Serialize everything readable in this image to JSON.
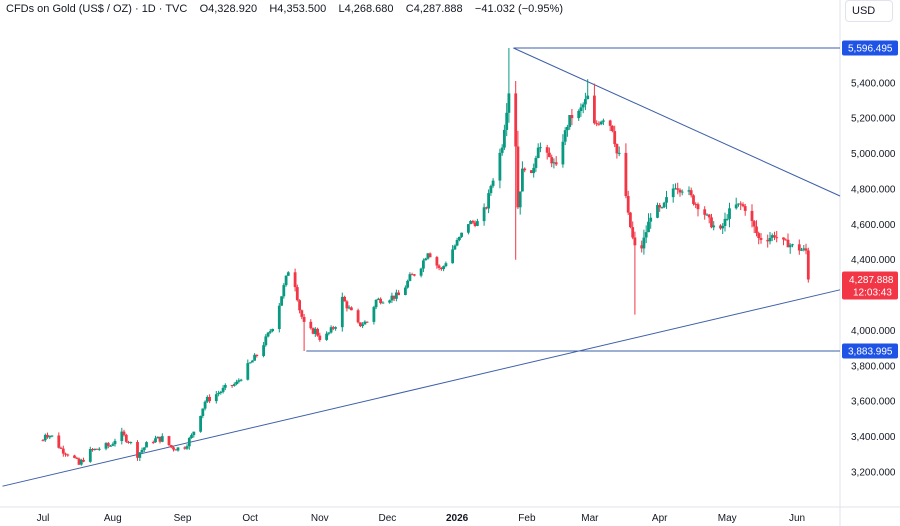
{
  "header": {
    "symbol": "CFDs on Gold (US$ / OZ) · 1D · TVC",
    "open": "O4,328.920",
    "high": "H4,353.500",
    "low": "L4,268.680",
    "close": "C4,287.888",
    "change": "−41.032 (−0.95%)"
  },
  "currency": "USD",
  "price_tag": {
    "price": "4,287.888",
    "countdown": "12:03:43"
  },
  "levels": [
    {
      "label": "5,596.495",
      "value": 5596.495
    },
    {
      "label": "3,883.995",
      "value": 3883.995
    }
  ],
  "colors": {
    "up": "#089981",
    "down": "#f23645",
    "line": "#2962ff",
    "level_tag": "#1e53e5",
    "price_tag": "#f23645"
  },
  "chart_data": {
    "type": "candlestick",
    "y_ticks": [
      "5,400.000",
      "5,200.000",
      "5,000.000",
      "4,800.000",
      "4,600.000",
      "4,400.000",
      "4,000.000",
      "3,800.000",
      "3,600.000",
      "3,400.000",
      "3,200.000"
    ],
    "y_tick_values": [
      5400,
      5200,
      5000,
      4800,
      4600,
      4400,
      4000,
      3800,
      3600,
      3400,
      3200
    ],
    "ylim": [
      3100,
      5730
    ],
    "x_ticks": [
      "Jul",
      "Aug",
      "Sep",
      "Oct",
      "Nov",
      "Dec",
      "2026",
      "Feb",
      "Mar",
      "Apr",
      "May",
      "Jun"
    ],
    "x_tick_days": [
      0,
      31,
      62,
      92,
      123,
      153,
      184,
      215,
      243,
      274,
      304,
      335
    ],
    "x_bold": [
      "2026"
    ],
    "xlim": [
      -12,
      370
    ],
    "trendlines": [
      {
        "name": "support",
        "from": {
          "day": -18,
          "value": 3120
        },
        "to": {
          "day": 361,
          "value": 4230
        }
      },
      {
        "name": "resistance",
        "from": {
          "day": 209,
          "value": 5596.495
        },
        "to": {
          "day": 361,
          "value": 4760
        }
      },
      {
        "name": "high-level",
        "from": {
          "day": 209,
          "value": 5596.495
        },
        "to": {
          "day": 370,
          "value": 5596.495
        }
      },
      {
        "name": "low-level",
        "from": {
          "day": 117,
          "value": 3883.995
        },
        "to": {
          "day": 370,
          "value": 3883.995
        }
      }
    ],
    "anchors": [
      {
        "day": -1,
        "value": 3340
      },
      {
        "day": 1,
        "value": 3420
      },
      {
        "day": 4,
        "value": 3400
      },
      {
        "day": 8,
        "value": 3330
      },
      {
        "day": 13,
        "value": 3290
      },
      {
        "day": 16,
        "value": 3240
      },
      {
        "day": 20,
        "value": 3310
      },
      {
        "day": 26,
        "value": 3340
      },
      {
        "day": 30,
        "value": 3350
      },
      {
        "day": 34,
        "value": 3420
      },
      {
        "day": 38,
        "value": 3380
      },
      {
        "day": 42,
        "value": 3300
      },
      {
        "day": 48,
        "value": 3380
      },
      {
        "day": 53,
        "value": 3390
      },
      {
        "day": 57,
        "value": 3340
      },
      {
        "day": 62,
        "value": 3330
      },
      {
        "day": 66,
        "value": 3400
      },
      {
        "day": 69,
        "value": 3500
      },
      {
        "day": 72,
        "value": 3600
      },
      {
        "day": 77,
        "value": 3640
      },
      {
        "day": 82,
        "value": 3680
      },
      {
        "day": 86,
        "value": 3700
      },
      {
        "day": 90,
        "value": 3780
      },
      {
        "day": 95,
        "value": 3860
      },
      {
        "day": 99,
        "value": 3950
      },
      {
        "day": 103,
        "value": 4050
      },
      {
        "day": 106,
        "value": 4200
      },
      {
        "day": 109,
        "value": 4340
      },
      {
        "day": 111,
        "value": 4330
      },
      {
        "day": 114,
        "value": 4120
      },
      {
        "day": 117,
        "value": 3990
      },
      {
        "day": 121,
        "value": 4000
      },
      {
        "day": 124,
        "value": 3940
      },
      {
        "day": 128,
        "value": 4000
      },
      {
        "day": 131,
        "value": 4050
      },
      {
        "day": 133,
        "value": 4180
      },
      {
        "day": 137,
        "value": 4100
      },
      {
        "day": 140,
        "value": 4030
      },
      {
        "day": 144,
        "value": 4050
      },
      {
        "day": 148,
        "value": 4170
      },
      {
        "day": 152,
        "value": 4180
      },
      {
        "day": 155,
        "value": 4190
      },
      {
        "day": 159,
        "value": 4200
      },
      {
        "day": 163,
        "value": 4300
      },
      {
        "day": 167,
        "value": 4340
      },
      {
        "day": 171,
        "value": 4450
      },
      {
        "day": 175,
        "value": 4370
      },
      {
        "day": 177,
        "value": 4340
      },
      {
        "day": 181,
        "value": 4440
      },
      {
        "day": 185,
        "value": 4520
      },
      {
        "day": 189,
        "value": 4610
      },
      {
        "day": 193,
        "value": 4610
      },
      {
        "day": 197,
        "value": 4700
      },
      {
        "day": 199,
        "value": 4820
      },
      {
        "day": 201,
        "value": 4900
      },
      {
        "day": 204,
        "value": 5050
      },
      {
        "day": 207,
        "value": 5350
      },
      {
        "day": 209,
        "value": 5400
      },
      {
        "day": 211,
        "value": 4700
      },
      {
        "day": 213,
        "value": 4900
      },
      {
        "day": 215,
        "value": 4950
      },
      {
        "day": 217,
        "value": 4870
      },
      {
        "day": 220,
        "value": 5050
      },
      {
        "day": 223,
        "value": 5000
      },
      {
        "day": 226,
        "value": 4960
      },
      {
        "day": 228,
        "value": 4920
      },
      {
        "day": 231,
        "value": 5080
      },
      {
        "day": 234,
        "value": 5200
      },
      {
        "day": 238,
        "value": 5230
      },
      {
        "day": 242,
        "value": 5320
      },
      {
        "day": 244,
        "value": 5150
      },
      {
        "day": 247,
        "value": 5180
      },
      {
        "day": 250,
        "value": 5210
      },
      {
        "day": 253,
        "value": 5140
      },
      {
        "day": 255,
        "value": 5000
      },
      {
        "day": 257,
        "value": 4980
      },
      {
        "day": 260,
        "value": 4650
      },
      {
        "day": 262,
        "value": 4520
      },
      {
        "day": 264,
        "value": 4420
      },
      {
        "day": 266,
        "value": 4470
      },
      {
        "day": 268,
        "value": 4560
      },
      {
        "day": 271,
        "value": 4700
      },
      {
        "day": 275,
        "value": 4680
      },
      {
        "day": 278,
        "value": 4770
      },
      {
        "day": 281,
        "value": 4820
      },
      {
        "day": 283,
        "value": 4800
      },
      {
        "day": 286,
        "value": 4800
      },
      {
        "day": 289,
        "value": 4730
      },
      {
        "day": 293,
        "value": 4680
      },
      {
        "day": 297,
        "value": 4600
      },
      {
        "day": 301,
        "value": 4560
      },
      {
        "day": 303,
        "value": 4620
      },
      {
        "day": 306,
        "value": 4700
      },
      {
        "day": 310,
        "value": 4710
      },
      {
        "day": 313,
        "value": 4680
      },
      {
        "day": 315,
        "value": 4610
      },
      {
        "day": 318,
        "value": 4520
      },
      {
        "day": 322,
        "value": 4520
      },
      {
        "day": 325,
        "value": 4540
      },
      {
        "day": 328,
        "value": 4500
      },
      {
        "day": 331,
        "value": 4490
      },
      {
        "day": 334,
        "value": 4470
      },
      {
        "day": 336,
        "value": 4460
      },
      {
        "day": 339,
        "value": 4450
      },
      {
        "day": 341,
        "value": 4330
      },
      {
        "day": 342,
        "value": 4287.888
      }
    ],
    "wick_extremes": [
      {
        "day": 210,
        "low": 4400
      },
      {
        "day": 264,
        "low": 4090
      },
      {
        "day": 209,
        "high": 5596.495
      },
      {
        "day": 244,
        "high": 5420
      },
      {
        "day": 117,
        "low": 3883.995
      },
      {
        "day": 341,
        "low": 4300
      }
    ],
    "last_close": 4287.888
  }
}
